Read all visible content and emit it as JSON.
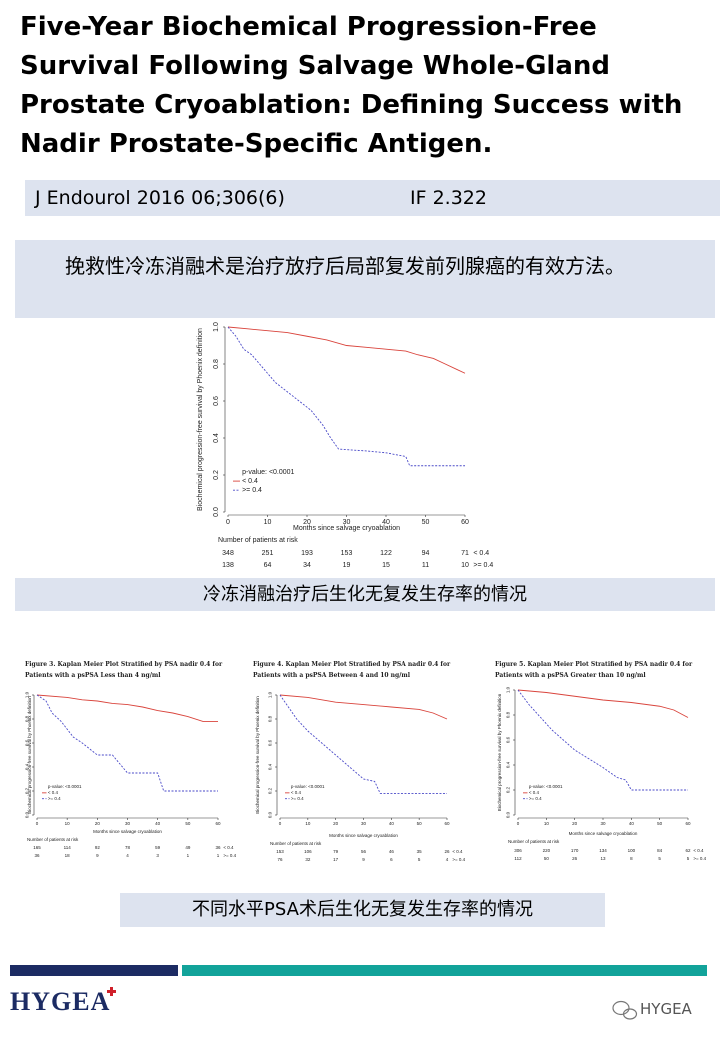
{
  "header": {
    "title": "Five-Year Biochemical Progression-Free Survival Following Salvage Whole-Gland Prostate Cryoablation: Defining Success with Nadir Prostate-Specific Antigen."
  },
  "citation": {
    "journal": "J Endourol 2016 06;306(6)",
    "impact": "IF 2.322"
  },
  "summary": "挽救性冷冻消融术是治疗放疗后局部复发前列腺癌的有效方法。",
  "figures": [
    {
      "type": "line",
      "ylabel": "Biochemical progression-free survival by Phoenix definition",
      "xlabel": "Months since salvage cryoablation",
      "xlim": [
        0,
        60
      ],
      "xticks": [
        0,
        10,
        20,
        30,
        40,
        50,
        60
      ],
      "ylim": [
        0,
        1
      ],
      "yticks": [
        {
          "value": 0,
          "label": "0.0"
        },
        0.2,
        0.4,
        0.6,
        0.8,
        {
          "value": 1,
          "label": "1.0"
        }
      ],
      "legend_title": "p-value: <0.0001",
      "series": [
        {
          "name": "< 0.4",
          "color": "#d9443c",
          "dashed": false,
          "x": [
            0,
            5,
            10,
            15,
            20,
            25,
            30,
            35,
            40,
            45,
            48,
            52,
            55,
            58,
            60
          ],
          "values": [
            1,
            0.99,
            0.98,
            0.97,
            0.95,
            0.93,
            0.9,
            0.89,
            0.88,
            0.87,
            0.85,
            0.83,
            0.8,
            0.77,
            0.75
          ]
        },
        {
          "name": ">= 0.4",
          "color": "#4a4ac8",
          "dashed": true,
          "x": [
            0,
            2,
            4,
            6,
            8,
            10,
            12,
            15,
            18,
            21,
            24,
            26,
            28,
            35,
            40,
            45,
            46,
            60
          ],
          "values": [
            1,
            0.95,
            0.88,
            0.85,
            0.8,
            0.75,
            0.7,
            0.65,
            0.6,
            0.55,
            0.47,
            0.4,
            0.34,
            0.33,
            0.32,
            0.3,
            0.25,
            0.25
          ]
        }
      ],
      "risk": {
        "title": "Number of patients at risk",
        "rows": [
          [
            348,
            251,
            193,
            153,
            122,
            94,
            71
          ],
          [
            138,
            64,
            34,
            19,
            15,
            11,
            10
          ]
        ]
      }
    },
    {
      "type": "line",
      "title": "Figure 3. Kaplan Meier Plot Stratified by PSA nadir 0.4 for Patients with a psPSA Less than 4 ng/ml",
      "ylabel": "Biochemical progression-free survival by Phoenix definition",
      "xlabel": "Months since salvage cryoablation",
      "xlim": [
        0,
        60
      ],
      "xticks": [
        0,
        10,
        20,
        30,
        40,
        50,
        60
      ],
      "ylim": [
        0,
        1
      ],
      "yticks": [
        {
          "value": 0,
          "label": "0.0"
        },
        0.2,
        0.4,
        0.6,
        0.8,
        {
          "value": 1,
          "label": "1.0"
        }
      ],
      "legend_title": "p-value: <0.0001",
      "series": [
        {
          "name": "< 0.4",
          "color": "#d9443c",
          "dashed": false,
          "x": [
            0,
            10,
            15,
            20,
            25,
            30,
            35,
            40,
            45,
            50,
            55,
            60
          ],
          "values": [
            1,
            0.98,
            0.96,
            0.95,
            0.93,
            0.92,
            0.9,
            0.87,
            0.85,
            0.82,
            0.78,
            0.78
          ]
        },
        {
          "name": ">= 0.4",
          "color": "#4a4ac8",
          "dashed": true,
          "x": [
            0,
            3,
            5,
            8,
            12,
            15,
            20,
            25,
            30,
            40,
            42,
            60
          ],
          "values": [
            1,
            0.95,
            0.85,
            0.78,
            0.65,
            0.6,
            0.5,
            0.5,
            0.35,
            0.35,
            0.2,
            0.2
          ]
        }
      ],
      "risk": {
        "title": "Number of patients at risk",
        "rows": [
          [
            165,
            114,
            92,
            78,
            59,
            49,
            36
          ],
          [
            36,
            18,
            9,
            4,
            3,
            1,
            1
          ]
        ]
      }
    },
    {
      "type": "line",
      "title": "Figure 4. Kaplan Meier Plot Stratified by PSA nadir 0.4 for Patients with a psPSA Between 4 and 10 ng/ml",
      "ylabel": "Biochemical progression-free survival by Phoenix definition",
      "xlabel": "Months since salvage cryoablation",
      "xlim": [
        0,
        60
      ],
      "xticks": [
        0,
        10,
        20,
        30,
        40,
        50,
        60
      ],
      "ylim": [
        0,
        1
      ],
      "yticks": [
        {
          "value": 0,
          "label": "0.0"
        },
        0.2,
        0.4,
        0.6,
        0.8,
        {
          "value": 1,
          "label": "1.0"
        }
      ],
      "legend_title": "p-value: <0.0001",
      "series": [
        {
          "name": "< 0.4",
          "color": "#d9443c",
          "dashed": false,
          "x": [
            0,
            10,
            20,
            30,
            40,
            50,
            55,
            60
          ],
          "values": [
            1,
            0.98,
            0.94,
            0.92,
            0.9,
            0.88,
            0.85,
            0.8
          ]
        },
        {
          "name": ">= 0.4",
          "color": "#4a4ac8",
          "dashed": true,
          "x": [
            0,
            3,
            6,
            10,
            15,
            20,
            25,
            30,
            34,
            36,
            60
          ],
          "values": [
            1,
            0.9,
            0.8,
            0.7,
            0.6,
            0.5,
            0.4,
            0.3,
            0.28,
            0.18,
            0.18
          ]
        }
      ],
      "risk": {
        "title": "Number of patients at risk",
        "rows": [
          [
            153,
            106,
            79,
            56,
            46,
            35,
            26
          ],
          [
            76,
            32,
            17,
            9,
            6,
            5,
            4
          ]
        ]
      }
    },
    {
      "type": "line",
      "title": "Figure 5. Kaplan Meier Plot Stratified by PSA nadir 0.4 for Patients with a psPSA Greater than 10 ng/ml",
      "ylabel": "Biochemical progression-free survival by Phoenix definition",
      "xlabel": "Months since salvage cryoablation",
      "xlim": [
        0,
        60
      ],
      "xticks": [
        0,
        10,
        20,
        30,
        40,
        50,
        60
      ],
      "ylim": [
        0,
        1
      ],
      "yticks": [
        {
          "value": 0,
          "label": "0.0"
        },
        0.2,
        0.4,
        0.6,
        0.8,
        {
          "value": 1,
          "label": "1.0"
        }
      ],
      "legend_title": "p-value: <0.0001",
      "series": [
        {
          "name": "< 0.4",
          "color": "#d9443c",
          "dashed": false,
          "x": [
            0,
            10,
            20,
            30,
            40,
            50,
            55,
            60
          ],
          "values": [
            1,
            0.98,
            0.95,
            0.92,
            0.9,
            0.87,
            0.84,
            0.78
          ]
        },
        {
          "name": ">= 0.4",
          "color": "#4a4ac8",
          "dashed": true,
          "x": [
            0,
            4,
            8,
            12,
            16,
            20,
            25,
            30,
            35,
            38,
            40,
            60
          ],
          "values": [
            1,
            0.88,
            0.78,
            0.68,
            0.6,
            0.52,
            0.45,
            0.38,
            0.3,
            0.28,
            0.2,
            0.2
          ]
        }
      ],
      "risk": {
        "title": "Number of patients at risk",
        "rows": [
          [
            306,
            220,
            170,
            134,
            100,
            84,
            62
          ],
          [
            112,
            50,
            26,
            13,
            8,
            5,
            5
          ]
        ]
      }
    }
  ],
  "captions": [
    "冷冻消融治疗后生化无复发生存率的情况",
    "不同水平PSA术后生化无复发生存率的情况"
  ],
  "footer": {
    "logo": "HYGEA",
    "watermark": "HYGEA"
  }
}
